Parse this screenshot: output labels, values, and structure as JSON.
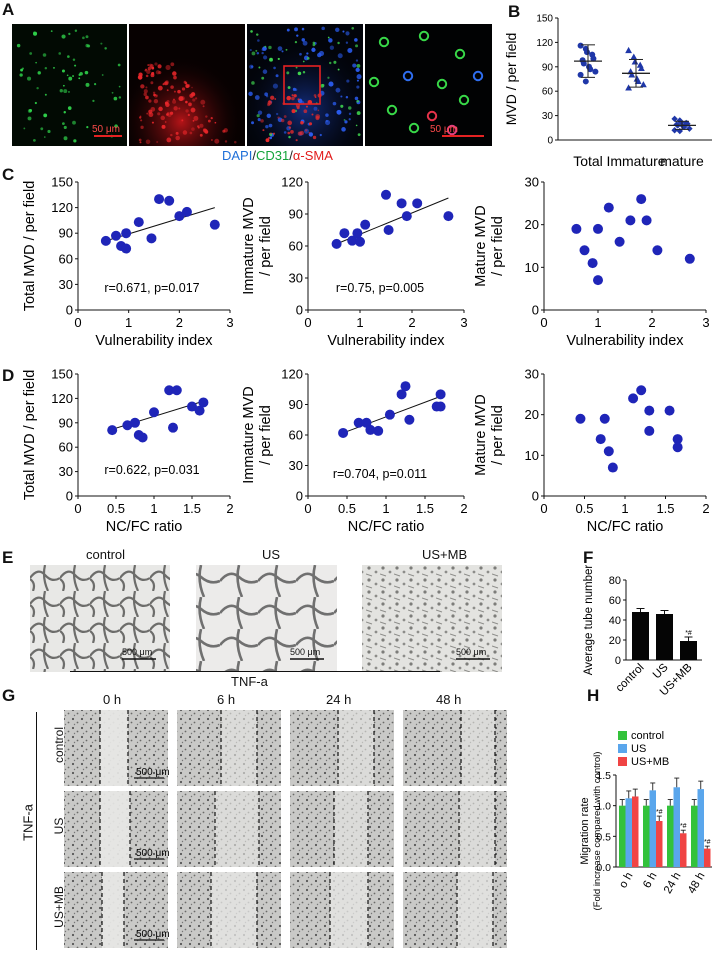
{
  "panels": {
    "A": {
      "letter": "A",
      "scale1": "50 μm",
      "scale2": "50 μm",
      "legend": [
        {
          "text": "DAPI",
          "color": "#1e6fd8"
        },
        {
          "text": "/",
          "color": "#222222"
        },
        {
          "text": "CD31",
          "color": "#13a43a"
        },
        {
          "text": "/",
          "color": "#222222"
        },
        {
          "text": "α-SMA",
          "color": "#e21b1b"
        }
      ]
    },
    "B": {
      "letter": "B"
    },
    "C": {
      "letter": "C"
    },
    "D": {
      "letter": "D"
    },
    "E": {
      "letter": "E",
      "labels": [
        "control",
        "US",
        "US+MB"
      ],
      "scale": "500 μm",
      "treatment": "TNF-a"
    },
    "F": {
      "letter": "F"
    },
    "G": {
      "letter": "G",
      "times": [
        "0 h",
        "6 h",
        "24 h",
        "48 h"
      ],
      "rows": [
        "control",
        "US",
        "US+MB"
      ],
      "treatment": "TNF-a",
      "scale": "500 μm"
    },
    "H": {
      "letter": "H"
    }
  },
  "chart_data": [
    {
      "id": "B",
      "type": "scatter",
      "ylabel": "MVD / per field",
      "yticks": [
        0,
        30,
        60,
        90,
        120,
        150
      ],
      "ylim": [
        0,
        150
      ],
      "categories": [
        "Total",
        "Immature",
        "mature"
      ],
      "series": [
        {
          "name": "Total",
          "marker": "circle",
          "mean": 97,
          "sd": 20,
          "values": [
            116,
            112,
            108,
            105,
            100,
            98,
            94,
            90,
            87,
            84,
            80,
            72
          ]
        },
        {
          "name": "Immature",
          "marker": "triangle",
          "mean": 82,
          "sd": 17,
          "values": [
            110,
            102,
            96,
            92,
            88,
            84,
            80,
            75,
            72,
            68,
            64
          ]
        },
        {
          "name": "mature",
          "marker": "diamond",
          "mean": 18,
          "sd": 5,
          "values": [
            26,
            24,
            22,
            21,
            20,
            19,
            18,
            17,
            16,
            14,
            12,
            11
          ]
        }
      ]
    },
    {
      "id": "C1",
      "type": "scatter",
      "xlabel": "Vulnerability index",
      "ylabel": "Total MVD / per field",
      "xlim": [
        0,
        3
      ],
      "xticks": [
        0,
        1,
        2,
        3
      ],
      "ylim": [
        0,
        150
      ],
      "yticks": [
        0,
        30,
        60,
        90,
        120,
        150
      ],
      "annotation": "r=0.671, p=0.017",
      "points": [
        [
          0.55,
          81
        ],
        [
          0.75,
          87
        ],
        [
          0.85,
          75
        ],
        [
          0.95,
          90
        ],
        [
          0.95,
          72
        ],
        [
          1.2,
          103
        ],
        [
          1.45,
          84
        ],
        [
          1.6,
          130
        ],
        [
          1.8,
          128
        ],
        [
          2.0,
          110
        ],
        [
          2.15,
          115
        ],
        [
          2.7,
          100
        ]
      ],
      "fit": [
        [
          0.55,
          81
        ],
        [
          2.7,
          120
        ]
      ]
    },
    {
      "id": "C2",
      "type": "scatter",
      "xlabel": "Vulnerability index",
      "ylabel": "Immature MVD / per field",
      "xlim": [
        0,
        3
      ],
      "xticks": [
        0,
        1,
        2,
        3
      ],
      "ylim": [
        0,
        120
      ],
      "yticks": [
        0,
        30,
        60,
        90,
        120
      ],
      "annotation": "r=0.75, p=0.005",
      "points": [
        [
          0.55,
          62
        ],
        [
          0.7,
          72
        ],
        [
          0.85,
          65
        ],
        [
          0.95,
          72
        ],
        [
          1.0,
          64
        ],
        [
          1.1,
          80
        ],
        [
          1.5,
          108
        ],
        [
          1.55,
          75
        ],
        [
          1.8,
          100
        ],
        [
          1.9,
          88
        ],
        [
          2.1,
          100
        ],
        [
          2.7,
          88
        ]
      ],
      "fit": [
        [
          0.55,
          62
        ],
        [
          2.7,
          105
        ]
      ]
    },
    {
      "id": "C3",
      "type": "scatter",
      "xlabel": "Vulnerability index",
      "ylabel": "Mature MVD / per field",
      "xlim": [
        0,
        3
      ],
      "xticks": [
        0,
        1,
        2,
        3
      ],
      "ylim": [
        0,
        30
      ],
      "yticks": [
        0,
        10,
        20,
        30
      ],
      "points": [
        [
          0.6,
          19
        ],
        [
          0.75,
          14
        ],
        [
          0.9,
          11
        ],
        [
          1.0,
          19
        ],
        [
          1.0,
          7
        ],
        [
          1.2,
          24
        ],
        [
          1.4,
          16
        ],
        [
          1.6,
          21
        ],
        [
          1.8,
          26
        ],
        [
          1.9,
          21
        ],
        [
          2.1,
          14
        ],
        [
          2.7,
          12
        ]
      ]
    },
    {
      "id": "D1",
      "type": "scatter",
      "xlabel": "NC/FC ratio",
      "ylabel": "Total MVD / per field",
      "xlim": [
        0,
        2
      ],
      "xticks": [
        0,
        0.5,
        1,
        1.5,
        2
      ],
      "ylim": [
        0,
        150
      ],
      "yticks": [
        0,
        30,
        60,
        90,
        120,
        150
      ],
      "annotation": "r=0.622, p=0.031",
      "points": [
        [
          0.45,
          81
        ],
        [
          0.65,
          87
        ],
        [
          0.75,
          90
        ],
        [
          0.8,
          75
        ],
        [
          0.85,
          72
        ],
        [
          1.0,
          103
        ],
        [
          1.2,
          130
        ],
        [
          1.25,
          84
        ],
        [
          1.3,
          130
        ],
        [
          1.5,
          110
        ],
        [
          1.6,
          105
        ],
        [
          1.65,
          115
        ]
      ],
      "fit": [
        [
          0.45,
          82
        ],
        [
          1.7,
          118
        ]
      ]
    },
    {
      "id": "D2",
      "type": "scatter",
      "xlabel": "NC/FC ratio",
      "ylabel": "Immature MVD / per field",
      "xlim": [
        0,
        2
      ],
      "xticks": [
        0,
        0.5,
        1,
        1.5,
        2
      ],
      "ylim": [
        0,
        120
      ],
      "yticks": [
        0,
        30,
        60,
        90,
        120
      ],
      "annotation": "r=0.704, p=0.011",
      "points": [
        [
          0.45,
          62
        ],
        [
          0.65,
          72
        ],
        [
          0.75,
          72
        ],
        [
          0.8,
          65
        ],
        [
          0.9,
          64
        ],
        [
          1.05,
          80
        ],
        [
          1.2,
          100
        ],
        [
          1.25,
          108
        ],
        [
          1.3,
          75
        ],
        [
          1.65,
          88
        ],
        [
          1.7,
          100
        ],
        [
          1.7,
          88
        ]
      ],
      "fit": [
        [
          0.45,
          62
        ],
        [
          1.7,
          98
        ]
      ]
    },
    {
      "id": "D3",
      "type": "scatter",
      "xlabel": "NC/FC ratio",
      "ylabel": "Mature MVD / per field",
      "xlim": [
        0,
        2
      ],
      "xticks": [
        0,
        0.5,
        1,
        1.5,
        2
      ],
      "ylim": [
        0,
        30
      ],
      "yticks": [
        0,
        10,
        20,
        30
      ],
      "points": [
        [
          0.45,
          19
        ],
        [
          0.7,
          14
        ],
        [
          0.75,
          19
        ],
        [
          0.8,
          11
        ],
        [
          0.85,
          7
        ],
        [
          1.1,
          24
        ],
        [
          1.2,
          26
        ],
        [
          1.3,
          16
        ],
        [
          1.3,
          21
        ],
        [
          1.55,
          21
        ],
        [
          1.65,
          14
        ],
        [
          1.65,
          12
        ]
      ]
    },
    {
      "id": "F",
      "type": "bar",
      "ylabel": "Average tube number",
      "categories": [
        "control",
        "US",
        "US+MB"
      ],
      "values": [
        48,
        46,
        19
      ],
      "errors": [
        3.5,
        3.5,
        4
      ],
      "ylim": [
        0,
        80
      ],
      "yticks": [
        0,
        20,
        40,
        60,
        80
      ],
      "annotations": [
        "",
        "",
        "*#"
      ]
    },
    {
      "id": "H",
      "type": "bar",
      "ylabel": "Migration rate",
      "ylabel2": "(Fold increase compared with control)",
      "categories": [
        "o h",
        "6 h",
        "24 h",
        "48 h"
      ],
      "ylim": [
        0,
        1.5
      ],
      "yticks": [
        0.0,
        0.5,
        1.0,
        1.5
      ],
      "series": [
        {
          "name": "control",
          "color": "#33c23b",
          "values": [
            1.0,
            1.0,
            1.0,
            1.0
          ],
          "errors": [
            0.1,
            0.1,
            0.1,
            0.1
          ]
        },
        {
          "name": "US",
          "color": "#5aa6ec",
          "values": [
            1.12,
            1.25,
            1.3,
            1.27
          ],
          "errors": [
            0.12,
            0.12,
            0.15,
            0.13
          ]
        },
        {
          "name": "US+MB",
          "color": "#f04444",
          "values": [
            1.15,
            0.75,
            0.55,
            0.3
          ],
          "errors": [
            0.12,
            0.08,
            0.05,
            0.04
          ]
        }
      ],
      "annotations": [
        "",
        "*#",
        "*#",
        "*#"
      ]
    }
  ]
}
